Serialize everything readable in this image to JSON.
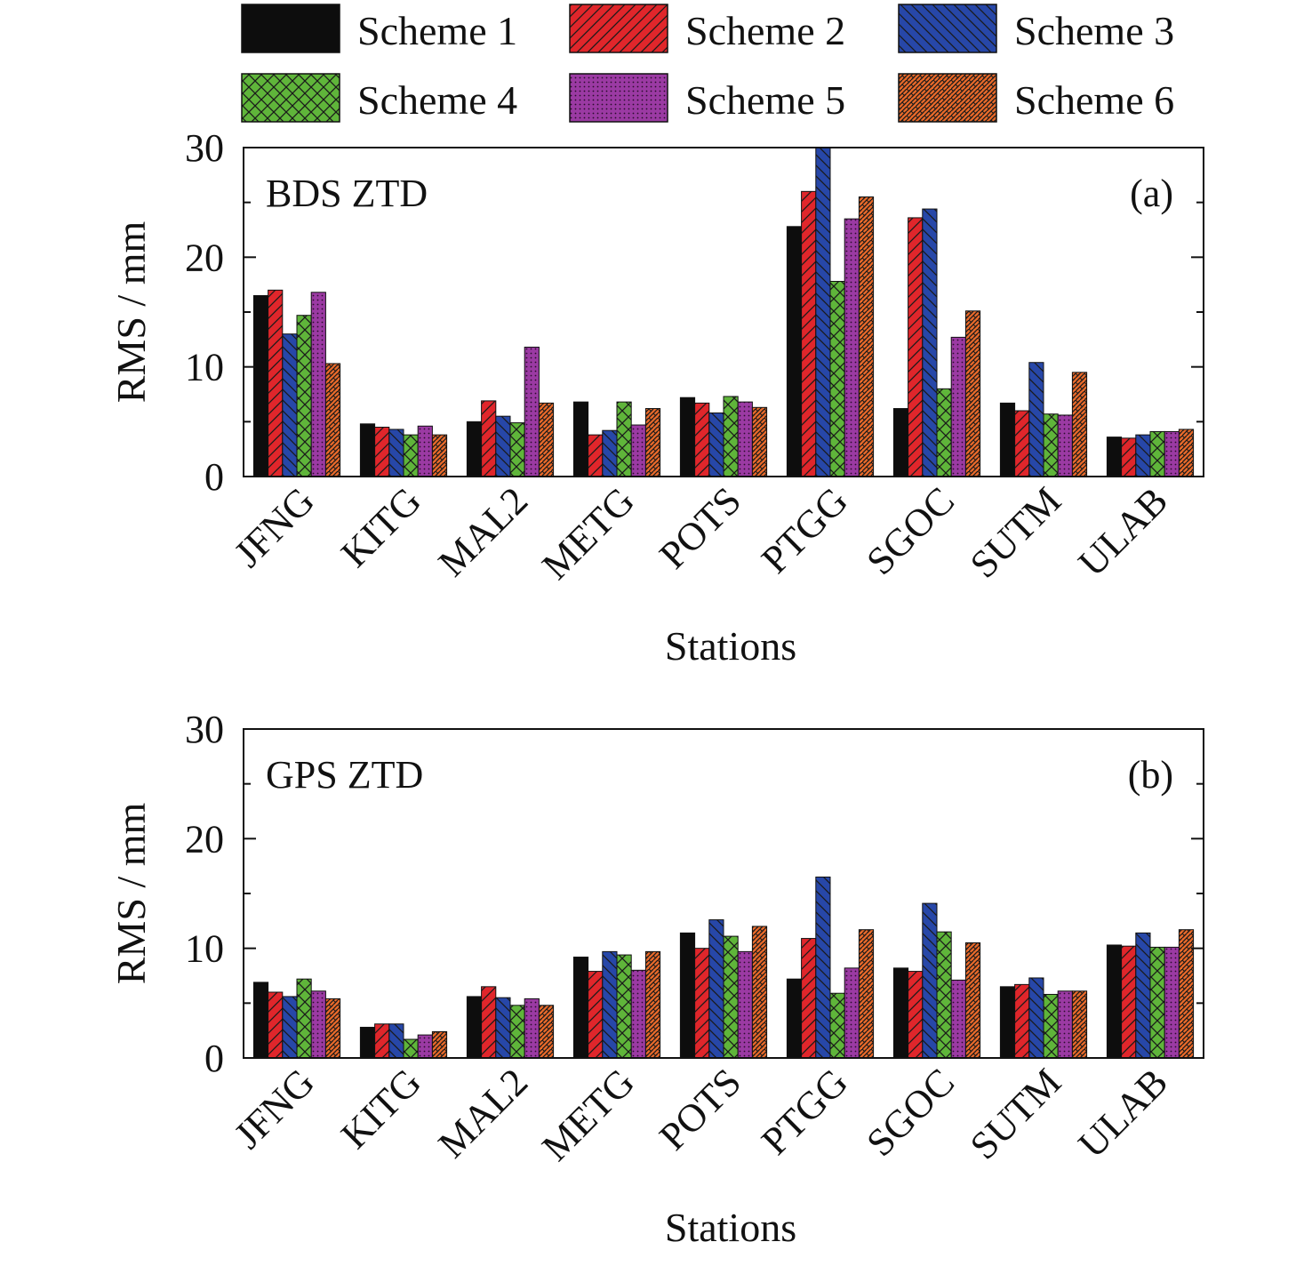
{
  "legend": [
    {
      "name": "Scheme 1",
      "color": "#0d0d0d",
      "pattern": "solid"
    },
    {
      "name": "Scheme 2",
      "color": "#e0262b",
      "pattern": "diag-up"
    },
    {
      "name": "Scheme 3",
      "color": "#2747a8",
      "pattern": "diag-down"
    },
    {
      "name": "Scheme 4",
      "color": "#5fb53a",
      "pattern": "cross"
    },
    {
      "name": "Scheme 5",
      "color": "#9b3aa3",
      "pattern": "dots"
    },
    {
      "name": "Scheme 6",
      "color": "#ea6a2a",
      "pattern": "weave"
    }
  ],
  "chart_data": [
    {
      "type": "bar",
      "panel_label": "(a)",
      "annotation": "BDS ZTD",
      "xlabel": "Stations",
      "ylabel": "RMS / mm",
      "ylim": [
        0,
        30
      ],
      "yticks": [
        0,
        10,
        20,
        30
      ],
      "categories": [
        "JFNG",
        "KITG",
        "MAL2",
        "METG",
        "POTS",
        "PTGG",
        "SGOC",
        "SUTM",
        "ULAB"
      ],
      "series": [
        {
          "name": "Scheme 1",
          "values": [
            16.5,
            4.8,
            5.0,
            6.8,
            7.2,
            22.8,
            6.2,
            6.7,
            3.6
          ]
        },
        {
          "name": "Scheme 2",
          "values": [
            17.0,
            4.5,
            6.9,
            3.8,
            6.7,
            26.0,
            23.6,
            6.0,
            3.5
          ]
        },
        {
          "name": "Scheme 3",
          "values": [
            13.0,
            4.3,
            5.5,
            4.2,
            5.8,
            30.0,
            24.4,
            10.4,
            3.8
          ]
        },
        {
          "name": "Scheme 4",
          "values": [
            14.7,
            3.8,
            4.9,
            6.8,
            7.3,
            17.8,
            8.0,
            5.7,
            4.1
          ]
        },
        {
          "name": "Scheme 5",
          "values": [
            16.8,
            4.6,
            11.8,
            4.7,
            6.8,
            23.5,
            12.7,
            5.6,
            4.1
          ]
        },
        {
          "name": "Scheme 6",
          "values": [
            10.3,
            3.8,
            6.7,
            6.2,
            6.3,
            25.5,
            15.1,
            9.5,
            4.3
          ]
        }
      ]
    },
    {
      "type": "bar",
      "panel_label": "(b)",
      "annotation": "GPS ZTD",
      "xlabel": "Stations",
      "ylabel": "RMS / mm",
      "ylim": [
        0,
        30
      ],
      "yticks": [
        0,
        10,
        20,
        30
      ],
      "categories": [
        "JFNG",
        "KITG",
        "MAL2",
        "METG",
        "POTS",
        "PTGG",
        "SGOC",
        "SUTM",
        "ULAB"
      ],
      "series": [
        {
          "name": "Scheme 1",
          "values": [
            6.9,
            2.8,
            5.6,
            9.2,
            11.4,
            7.2,
            8.2,
            6.5,
            10.3
          ]
        },
        {
          "name": "Scheme 2",
          "values": [
            6.0,
            3.1,
            6.5,
            7.9,
            10.0,
            10.9,
            7.9,
            6.7,
            10.2
          ]
        },
        {
          "name": "Scheme 3",
          "values": [
            5.6,
            3.1,
            5.5,
            9.7,
            12.6,
            16.5,
            14.1,
            7.3,
            11.4
          ]
        },
        {
          "name": "Scheme 4",
          "values": [
            7.2,
            1.7,
            4.8,
            9.4,
            11.1,
            5.9,
            11.5,
            5.8,
            10.1
          ]
        },
        {
          "name": "Scheme 5",
          "values": [
            6.1,
            2.1,
            5.4,
            8.0,
            9.7,
            8.2,
            7.1,
            6.1,
            10.1
          ]
        },
        {
          "name": "Scheme 6",
          "values": [
            5.4,
            2.4,
            4.8,
            9.7,
            12.0,
            11.7,
            10.5,
            6.1,
            11.7
          ]
        }
      ]
    }
  ]
}
